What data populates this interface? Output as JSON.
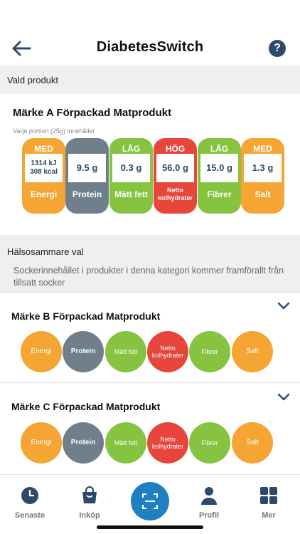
{
  "header": {
    "title": "DiabetesSwitch",
    "help_label": "?"
  },
  "selected": {
    "section_label": "Vald produkt",
    "product_name": "Märke A Förpackad Matprodukt",
    "portion_text": "Varje portion (25g) innehåller",
    "nutrients": [
      {
        "level": "MED",
        "value": "1314 kJ 308 kcal",
        "name": "Energi",
        "color": "#f4a534"
      },
      {
        "level": "",
        "value": "9.5 g",
        "name": "Protein",
        "color": "#6f7f8c"
      },
      {
        "level": "LÅG",
        "value": "0.3 g",
        "name": "Mätt fett",
        "color": "#86c340"
      },
      {
        "level": "HÖG",
        "value": "56.0 g",
        "name": "Netto kolhydrater",
        "color": "#e8453c"
      },
      {
        "level": "LÅG",
        "value": "15.0 g",
        "name": "Fibrer",
        "color": "#86c340"
      },
      {
        "level": "MED",
        "value": "1.3 g",
        "name": "Salt",
        "color": "#f4a534"
      }
    ]
  },
  "healthier": {
    "section_label": "Hälsosammare val",
    "info_text": "Sockerinnehållet i produkter i denna kategori kommer framförallt från tillsatt socker",
    "alternatives": [
      {
        "name": "Märke B Förpackad Matprodukt",
        "circles": [
          "Energi",
          "Protein",
          "Mätt fett",
          "Netto kolhydrater",
          "Fibrer",
          "Salt"
        ]
      },
      {
        "name": "Märke C Förpackad Matprodukt",
        "circles": [
          "Energi",
          "Protein",
          "Mätt fett",
          "Netto kolhydrater",
          "Fibrer",
          "Salt"
        ]
      }
    ]
  },
  "tabbar": {
    "recent": "Senaste",
    "shopping": "Inköp",
    "profile": "Profil",
    "more": "Mer"
  },
  "colors": {
    "accent": "#1f7fc1",
    "navy": "#2c4a6b"
  }
}
